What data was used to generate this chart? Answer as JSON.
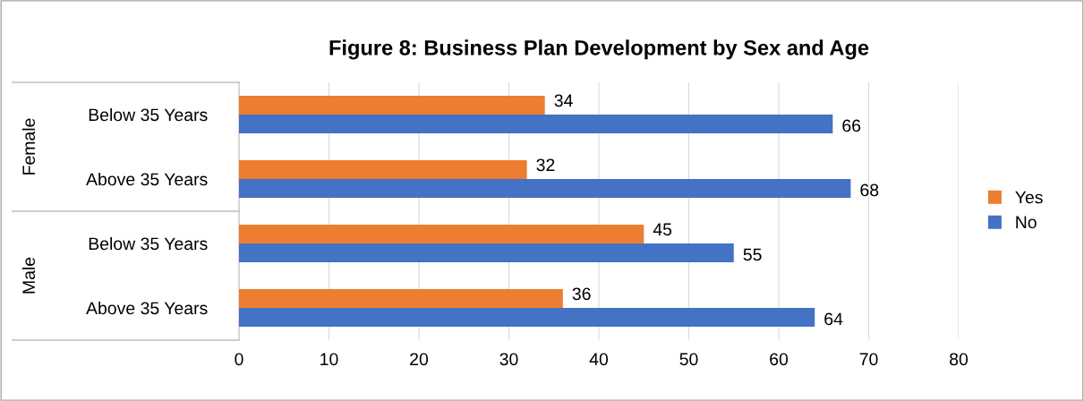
{
  "chart_data": {
    "type": "bar",
    "orientation": "horizontal",
    "title": "Figure 8: Business Plan Development by Sex and Age",
    "categories": [
      "Below 35 Years",
      "Above 35 Years",
      "Below 35 Years",
      "Above 35 Years"
    ],
    "annotations": [
      "Female",
      "Male"
    ],
    "series": [
      {
        "name": "Yes",
        "color": "#ed7d31",
        "values": [
          34,
          32,
          45,
          36
        ]
      },
      {
        "name": "No",
        "color": "#4472c4",
        "values": [
          66,
          68,
          55,
          64
        ]
      }
    ],
    "xlim": [
      0,
      80
    ],
    "xticks": [
      0,
      10,
      20,
      30,
      40,
      50,
      60,
      70,
      80
    ],
    "grid": "x",
    "legend": "right",
    "data_labels": true
  }
}
